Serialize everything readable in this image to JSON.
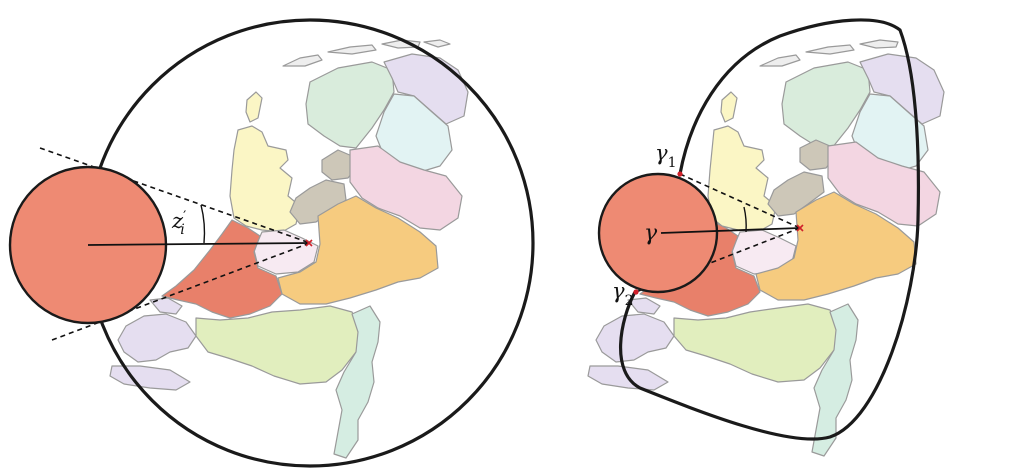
{
  "figure": {
    "left_panel": {
      "angle_label": {
        "main": "z",
        "sub": "i",
        "prime": "′"
      }
    },
    "right_panel": {
      "center_label": "γ",
      "gamma1": {
        "main": "γ",
        "sub": "1"
      },
      "gamma2": {
        "main": "γ",
        "sub": "2"
      }
    }
  },
  "colors": {
    "disk_fill": "#ee8a73",
    "disk_stroke": "#1a1a1a",
    "province_highlight": "#e8806a",
    "province_orange": "#f6cb7f",
    "province_yellow": "#fbf6c5",
    "province_green": "#e1eebe",
    "province_teal": "#d5ede2",
    "province_pink": "#f3d6e2",
    "province_lavender": "#e5def0",
    "province_lightgreen": "#d9ecdc",
    "province_cyan": "#e2f3f3",
    "province_gray": "#cdc7b8",
    "province_lightpink": "#f7eaf2",
    "border_gray": "#9a9a9a",
    "marker_red": "#d0202a"
  }
}
